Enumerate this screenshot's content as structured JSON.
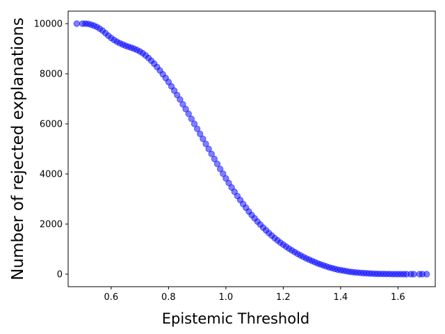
{
  "chart_data": {
    "type": "scatter",
    "title": "",
    "xlabel": "Epistemic Threshold",
    "ylabel": "Number of rejected explanations",
    "xlim": [
      0.45,
      1.73
    ],
    "ylim": [
      -500,
      10500
    ],
    "xticks": [
      0.6,
      0.8,
      1.0,
      1.2,
      1.4,
      1.6
    ],
    "xtick_labels": [
      "0.6",
      "0.8",
      "1.0",
      "1.2",
      "1.4",
      "1.6"
    ],
    "yticks": [
      0,
      2000,
      4000,
      6000,
      8000,
      10000
    ],
    "ytick_labels": [
      "0",
      "2000",
      "4000",
      "6000",
      "8000",
      "10000"
    ],
    "grid": false,
    "marker_color": "#0000ff",
    "marker_alpha": 0.5,
    "points": [
      {
        "x": 0.48,
        "y": 10000
      },
      {
        "x": 0.5,
        "y": 10000
      },
      {
        "x": 0.51,
        "y": 10000
      },
      {
        "x": 0.52,
        "y": 9990
      },
      {
        "x": 0.53,
        "y": 9960
      },
      {
        "x": 0.54,
        "y": 9920
      },
      {
        "x": 0.55,
        "y": 9870
      },
      {
        "x": 0.56,
        "y": 9800
      },
      {
        "x": 0.57,
        "y": 9720
      },
      {
        "x": 0.58,
        "y": 9620
      },
      {
        "x": 0.59,
        "y": 9520
      },
      {
        "x": 0.6,
        "y": 9430
      },
      {
        "x": 0.61,
        "y": 9350
      },
      {
        "x": 0.62,
        "y": 9280
      },
      {
        "x": 0.63,
        "y": 9220
      },
      {
        "x": 0.64,
        "y": 9170
      },
      {
        "x": 0.65,
        "y": 9120
      },
      {
        "x": 0.66,
        "y": 9080
      },
      {
        "x": 0.67,
        "y": 9040
      },
      {
        "x": 0.68,
        "y": 9000
      },
      {
        "x": 0.69,
        "y": 8950
      },
      {
        "x": 0.7,
        "y": 8890
      },
      {
        "x": 0.71,
        "y": 8820
      },
      {
        "x": 0.72,
        "y": 8730
      },
      {
        "x": 0.73,
        "y": 8630
      },
      {
        "x": 0.74,
        "y": 8520
      },
      {
        "x": 0.75,
        "y": 8400
      },
      {
        "x": 0.76,
        "y": 8270
      },
      {
        "x": 0.77,
        "y": 8130
      },
      {
        "x": 0.78,
        "y": 7980
      },
      {
        "x": 0.79,
        "y": 7830
      },
      {
        "x": 0.8,
        "y": 7670
      },
      {
        "x": 0.81,
        "y": 7500
      },
      {
        "x": 0.82,
        "y": 7330
      },
      {
        "x": 0.83,
        "y": 7150
      },
      {
        "x": 0.84,
        "y": 6970
      },
      {
        "x": 0.85,
        "y": 6780
      },
      {
        "x": 0.86,
        "y": 6590
      },
      {
        "x": 0.87,
        "y": 6400
      },
      {
        "x": 0.88,
        "y": 6200
      },
      {
        "x": 0.89,
        "y": 6000
      },
      {
        "x": 0.9,
        "y": 5800
      },
      {
        "x": 0.91,
        "y": 5600
      },
      {
        "x": 0.92,
        "y": 5400
      },
      {
        "x": 0.93,
        "y": 5200
      },
      {
        "x": 0.94,
        "y": 5000
      },
      {
        "x": 0.95,
        "y": 4800
      },
      {
        "x": 0.96,
        "y": 4600
      },
      {
        "x": 0.97,
        "y": 4400
      },
      {
        "x": 0.98,
        "y": 4200
      },
      {
        "x": 0.99,
        "y": 4010
      },
      {
        "x": 1.0,
        "y": 3820
      },
      {
        "x": 1.01,
        "y": 3640
      },
      {
        "x": 1.02,
        "y": 3460
      },
      {
        "x": 1.03,
        "y": 3290
      },
      {
        "x": 1.04,
        "y": 3120
      },
      {
        "x": 1.05,
        "y": 2960
      },
      {
        "x": 1.06,
        "y": 2800
      },
      {
        "x": 1.07,
        "y": 2650
      },
      {
        "x": 1.08,
        "y": 2500
      },
      {
        "x": 1.09,
        "y": 2360
      },
      {
        "x": 1.1,
        "y": 2230
      },
      {
        "x": 1.11,
        "y": 2100
      },
      {
        "x": 1.12,
        "y": 1980
      },
      {
        "x": 1.13,
        "y": 1860
      },
      {
        "x": 1.14,
        "y": 1750
      },
      {
        "x": 1.15,
        "y": 1640
      },
      {
        "x": 1.16,
        "y": 1540
      },
      {
        "x": 1.17,
        "y": 1440
      },
      {
        "x": 1.18,
        "y": 1350
      },
      {
        "x": 1.19,
        "y": 1260
      },
      {
        "x": 1.2,
        "y": 1180
      },
      {
        "x": 1.21,
        "y": 1100
      },
      {
        "x": 1.22,
        "y": 1020
      },
      {
        "x": 1.23,
        "y": 950
      },
      {
        "x": 1.24,
        "y": 880
      },
      {
        "x": 1.25,
        "y": 810
      },
      {
        "x": 1.26,
        "y": 750
      },
      {
        "x": 1.27,
        "y": 690
      },
      {
        "x": 1.28,
        "y": 630
      },
      {
        "x": 1.29,
        "y": 580
      },
      {
        "x": 1.3,
        "y": 530
      },
      {
        "x": 1.31,
        "y": 480
      },
      {
        "x": 1.32,
        "y": 430
      },
      {
        "x": 1.33,
        "y": 390
      },
      {
        "x": 1.34,
        "y": 350
      },
      {
        "x": 1.35,
        "y": 310
      },
      {
        "x": 1.36,
        "y": 270
      },
      {
        "x": 1.37,
        "y": 240
      },
      {
        "x": 1.38,
        "y": 210
      },
      {
        "x": 1.39,
        "y": 180
      },
      {
        "x": 1.4,
        "y": 160
      },
      {
        "x": 1.41,
        "y": 140
      },
      {
        "x": 1.42,
        "y": 120
      },
      {
        "x": 1.43,
        "y": 100
      },
      {
        "x": 1.44,
        "y": 85
      },
      {
        "x": 1.45,
        "y": 72
      },
      {
        "x": 1.46,
        "y": 60
      },
      {
        "x": 1.47,
        "y": 50
      },
      {
        "x": 1.48,
        "y": 42
      },
      {
        "x": 1.49,
        "y": 35
      },
      {
        "x": 1.5,
        "y": 28
      },
      {
        "x": 1.51,
        "y": 22
      },
      {
        "x": 1.52,
        "y": 17
      },
      {
        "x": 1.53,
        "y": 13
      },
      {
        "x": 1.54,
        "y": 10
      },
      {
        "x": 1.55,
        "y": 8
      },
      {
        "x": 1.56,
        "y": 6
      },
      {
        "x": 1.57,
        "y": 4
      },
      {
        "x": 1.58,
        "y": 3
      },
      {
        "x": 1.59,
        "y": 2
      },
      {
        "x": 1.6,
        "y": 1
      },
      {
        "x": 1.61,
        "y": 1
      },
      {
        "x": 1.62,
        "y": 0
      },
      {
        "x": 1.63,
        "y": 0
      },
      {
        "x": 1.645,
        "y": 0
      },
      {
        "x": 1.655,
        "y": 0
      },
      {
        "x": 1.675,
        "y": 0
      },
      {
        "x": 1.685,
        "y": 0
      },
      {
        "x": 1.7,
        "y": 0
      }
    ]
  }
}
